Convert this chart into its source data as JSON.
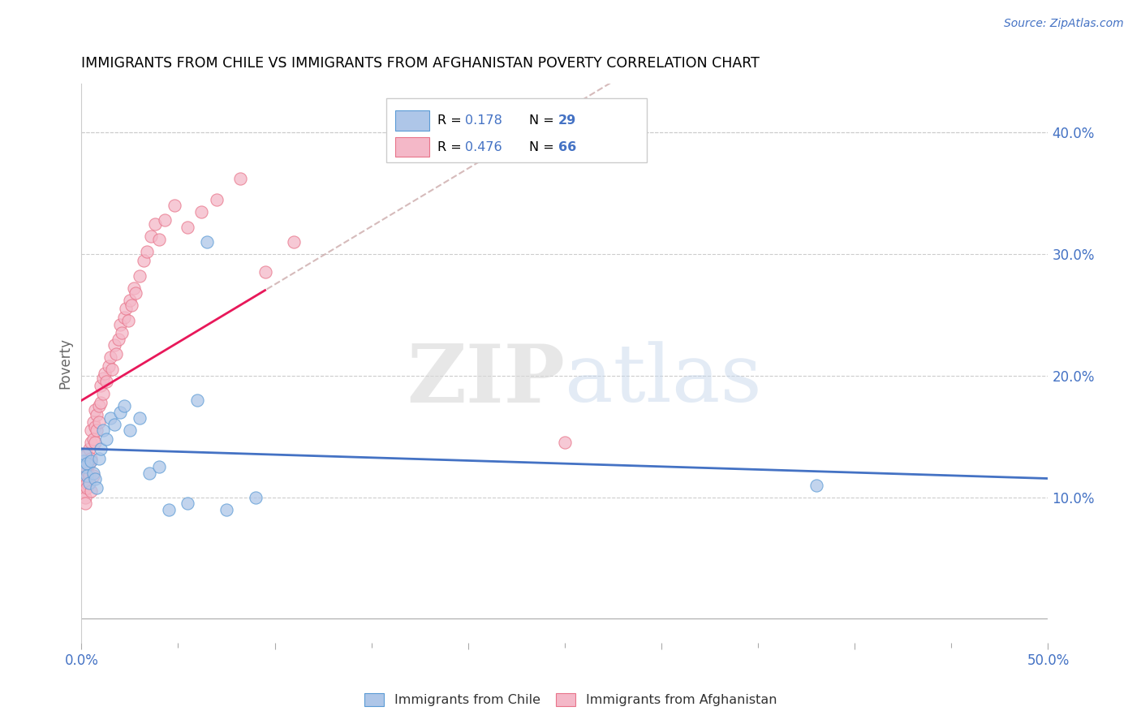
{
  "title": "IMMIGRANTS FROM CHILE VS IMMIGRANTS FROM AFGHANISTAN POVERTY CORRELATION CHART",
  "source": "Source: ZipAtlas.com",
  "ylabel": "Poverty",
  "xlim": [
    0.0,
    0.5
  ],
  "ylim": [
    -0.02,
    0.44
  ],
  "xticks": [
    0.0,
    0.05,
    0.1,
    0.15,
    0.2,
    0.25,
    0.3,
    0.35,
    0.4,
    0.45,
    0.5
  ],
  "xtick_labels": [
    "0.0%",
    "",
    "",
    "",
    "",
    "",
    "",
    "",
    "",
    "",
    "50.0%"
  ],
  "yticks": [
    0.1,
    0.2,
    0.3,
    0.4
  ],
  "ytick_labels": [
    "10.0%",
    "20.0%",
    "30.0%",
    "40.0%"
  ],
  "chile_color": "#aec6e8",
  "chile_edge": "#5b9bd5",
  "afghanistan_color": "#f4b8c8",
  "afghanistan_edge": "#e8748a",
  "trend_chile_color": "#4472c4",
  "trend_afghanistan_color": "#e8185a",
  "trend_dashed_color": "#ccaaaa",
  "R_chile": 0.178,
  "N_chile": 29,
  "R_afghanistan": 0.476,
  "N_afghanistan": 66,
  "legend_label_chile": "Immigrants from Chile",
  "legend_label_afghanistan": "Immigrants from Afghanistan",
  "watermark_zip": "ZIP",
  "watermark_atlas": "atlas",
  "chile_x": [
    0.001,
    0.002,
    0.002,
    0.003,
    0.003,
    0.004,
    0.005,
    0.006,
    0.007,
    0.008,
    0.009,
    0.01,
    0.011,
    0.013,
    0.015,
    0.017,
    0.02,
    0.022,
    0.025,
    0.03,
    0.035,
    0.04,
    0.045,
    0.055,
    0.06,
    0.065,
    0.075,
    0.09,
    0.38
  ],
  "chile_y": [
    0.13,
    0.135,
    0.125,
    0.128,
    0.118,
    0.112,
    0.13,
    0.12,
    0.115,
    0.108,
    0.132,
    0.14,
    0.155,
    0.148,
    0.165,
    0.16,
    0.17,
    0.175,
    0.155,
    0.165,
    0.12,
    0.125,
    0.09,
    0.095,
    0.18,
    0.31,
    0.09,
    0.1,
    0.11
  ],
  "afghanistan_x": [
    0.001,
    0.001,
    0.001,
    0.001,
    0.002,
    0.002,
    0.002,
    0.002,
    0.002,
    0.003,
    0.003,
    0.003,
    0.003,
    0.004,
    0.004,
    0.004,
    0.005,
    0.005,
    0.005,
    0.005,
    0.006,
    0.006,
    0.006,
    0.007,
    0.007,
    0.007,
    0.008,
    0.008,
    0.009,
    0.009,
    0.01,
    0.01,
    0.011,
    0.011,
    0.012,
    0.013,
    0.014,
    0.015,
    0.016,
    0.017,
    0.018,
    0.019,
    0.02,
    0.021,
    0.022,
    0.023,
    0.024,
    0.025,
    0.026,
    0.027,
    0.028,
    0.03,
    0.032,
    0.034,
    0.036,
    0.038,
    0.04,
    0.043,
    0.048,
    0.055,
    0.062,
    0.07,
    0.082,
    0.095,
    0.11,
    0.25
  ],
  "afghanistan_y": [
    0.125,
    0.115,
    0.105,
    0.13,
    0.12,
    0.11,
    0.1,
    0.118,
    0.095,
    0.112,
    0.122,
    0.108,
    0.135,
    0.14,
    0.128,
    0.118,
    0.145,
    0.155,
    0.132,
    0.105,
    0.148,
    0.162,
    0.118,
    0.158,
    0.145,
    0.172,
    0.168,
    0.155,
    0.175,
    0.162,
    0.178,
    0.192,
    0.185,
    0.198,
    0.202,
    0.195,
    0.208,
    0.215,
    0.205,
    0.225,
    0.218,
    0.23,
    0.242,
    0.235,
    0.248,
    0.255,
    0.245,
    0.262,
    0.258,
    0.272,
    0.268,
    0.282,
    0.295,
    0.302,
    0.315,
    0.325,
    0.312,
    0.328,
    0.34,
    0.322,
    0.335,
    0.345,
    0.362,
    0.285,
    0.31,
    0.145
  ]
}
